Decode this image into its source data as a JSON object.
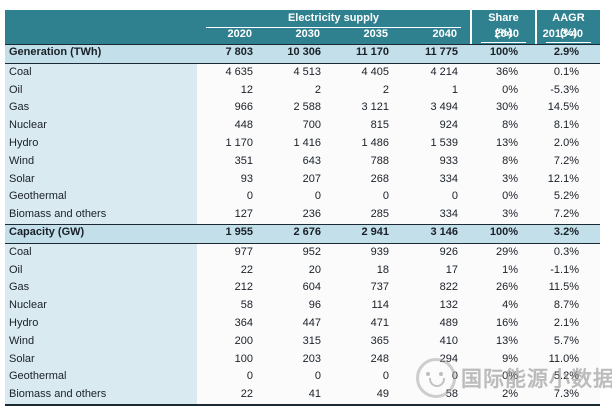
{
  "chart_data": {
    "type": "table",
    "title": "Electricity supply",
    "group_headers": {
      "supply": "Electricity supply",
      "share": "Share (%)",
      "aagr": "AAGR (%)"
    },
    "year_columns": [
      "2020",
      "2030",
      "2035",
      "2040"
    ],
    "share_column": "2040",
    "aagr_column": "2013-40",
    "rows": [
      {
        "label": "Generation (TWh)",
        "style": "summary",
        "values": [
          "7 803",
          "10 306",
          "11 170",
          "11 775",
          "100%",
          "2.9%"
        ]
      },
      {
        "label": "Coal",
        "style": "normal",
        "values": [
          "4 635",
          "4 513",
          "4 405",
          "4 214",
          "36%",
          "0.1%"
        ]
      },
      {
        "label": "Oil",
        "style": "normal",
        "values": [
          "12",
          "2",
          "2",
          "1",
          "0%",
          "-5.3%"
        ]
      },
      {
        "label": "Gas",
        "style": "normal",
        "values": [
          "966",
          "2 588",
          "3 121",
          "3 494",
          "30%",
          "14.5%"
        ]
      },
      {
        "label": "Nuclear",
        "style": "normal",
        "values": [
          "448",
          "700",
          "815",
          "924",
          "8%",
          "8.1%"
        ]
      },
      {
        "label": "Hydro",
        "style": "normal",
        "values": [
          "1 170",
          "1 416",
          "1 486",
          "1 539",
          "13%",
          "2.0%"
        ]
      },
      {
        "label": "Wind",
        "style": "normal",
        "values": [
          "351",
          "643",
          "788",
          "933",
          "8%",
          "7.2%"
        ]
      },
      {
        "label": "Solar",
        "style": "normal",
        "values": [
          "93",
          "207",
          "268",
          "334",
          "3%",
          "12.1%"
        ]
      },
      {
        "label": "Geothermal",
        "style": "normal",
        "values": [
          "0",
          "0",
          "0",
          "0",
          "0%",
          "5.2%"
        ]
      },
      {
        "label": "Biomass and others",
        "style": "normal",
        "values": [
          "127",
          "236",
          "285",
          "334",
          "3%",
          "7.2%"
        ]
      },
      {
        "label": "Capacity (GW)",
        "style": "summary",
        "values": [
          "1 955",
          "2 676",
          "2 941",
          "3 146",
          "100%",
          "3.2%"
        ]
      },
      {
        "label": "Coal",
        "style": "normal",
        "values": [
          "977",
          "952",
          "939",
          "926",
          "29%",
          "0.3%"
        ]
      },
      {
        "label": "Oil",
        "style": "normal",
        "values": [
          "22",
          "20",
          "18",
          "17",
          "1%",
          "-1.1%"
        ]
      },
      {
        "label": "Gas",
        "style": "normal",
        "values": [
          "212",
          "604",
          "737",
          "822",
          "26%",
          "11.5%"
        ]
      },
      {
        "label": "Nuclear",
        "style": "normal",
        "values": [
          "58",
          "96",
          "114",
          "132",
          "4%",
          "8.7%"
        ]
      },
      {
        "label": "Hydro",
        "style": "normal",
        "values": [
          "364",
          "447",
          "471",
          "489",
          "16%",
          "2.1%"
        ]
      },
      {
        "label": "Wind",
        "style": "normal",
        "values": [
          "200",
          "315",
          "365",
          "410",
          "13%",
          "5.7%"
        ]
      },
      {
        "label": "Solar",
        "style": "normal",
        "values": [
          "100",
          "203",
          "248",
          "294",
          "9%",
          "11.0%"
        ]
      },
      {
        "label": "Geothermal",
        "style": "normal",
        "values": [
          "0",
          "0",
          "0",
          "0",
          "0%",
          "5.2%"
        ]
      },
      {
        "label": "Biomass and others",
        "style": "normal",
        "values": [
          "22",
          "41",
          "49",
          "58",
          "2%",
          "7.3%"
        ]
      }
    ]
  },
  "watermark": {
    "text": "国际能源小数据",
    "icon": "wechat-account-logo-icon"
  },
  "colors": {
    "header_teal": "#30818F",
    "summary_row_bg": "#C3DFE9",
    "label_column_bg": "#D9EAF1",
    "data_cell_bg": "#FBFBFB",
    "dark_border": "#1B2A33",
    "watermark_gray": "#949494"
  }
}
